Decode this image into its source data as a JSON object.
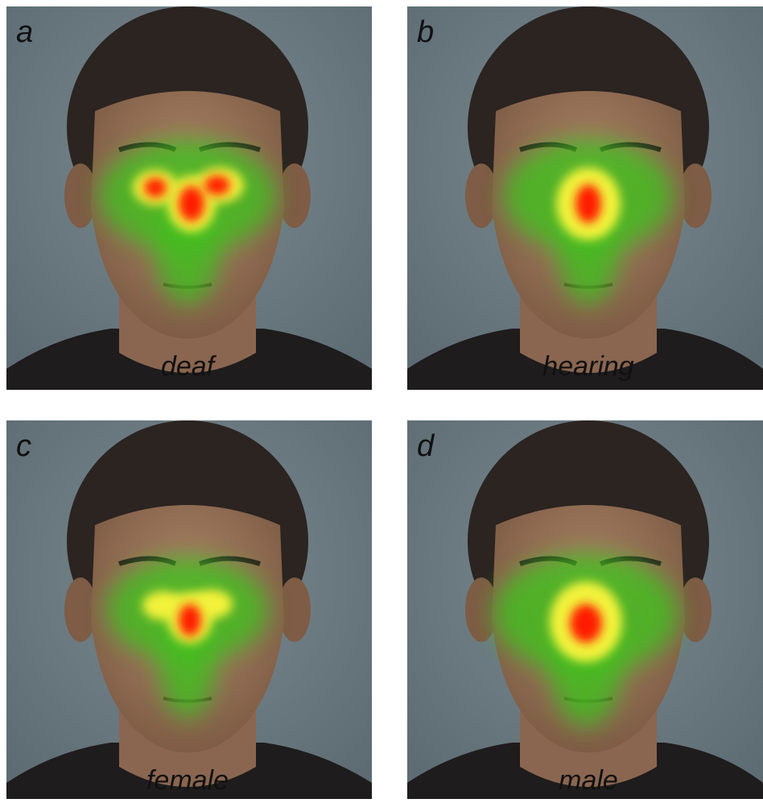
{
  "panels": [
    {
      "letter": "a",
      "label": "deaf"
    },
    {
      "letter": "b",
      "label": "hearing"
    },
    {
      "letter": "c",
      "label": "female"
    },
    {
      "letter": "d",
      "label": "male"
    }
  ]
}
